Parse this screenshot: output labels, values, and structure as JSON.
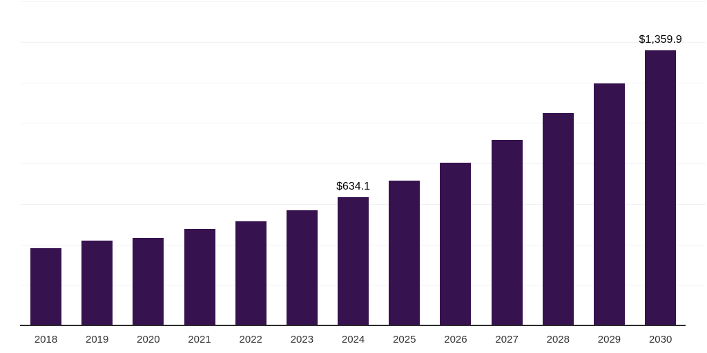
{
  "chart_data": {
    "type": "bar",
    "title": "",
    "xlabel": "",
    "ylabel": "",
    "categories": [
      "2018",
      "2019",
      "2020",
      "2021",
      "2022",
      "2023",
      "2024",
      "2025",
      "2026",
      "2027",
      "2028",
      "2029",
      "2030"
    ],
    "values": [
      381,
      419,
      433,
      478,
      514,
      570,
      634.1,
      714,
      805,
      917,
      1048,
      1196,
      1359.9
    ],
    "value_labels": {
      "2024": "$634.1",
      "2030": "$1,359.9"
    },
    "ylim": [
      0,
      1600
    ],
    "y_grid_step": 200,
    "grid": true,
    "y_axis_tick_labels_shown": false,
    "legend": false,
    "bar_color": "#36124f",
    "axis_line_color": "#2b2b2b",
    "gridline_color": "#f1f2f4",
    "tick_label_color": "#333333",
    "value_label_color": "#000000",
    "background_color": "#ffffff"
  }
}
